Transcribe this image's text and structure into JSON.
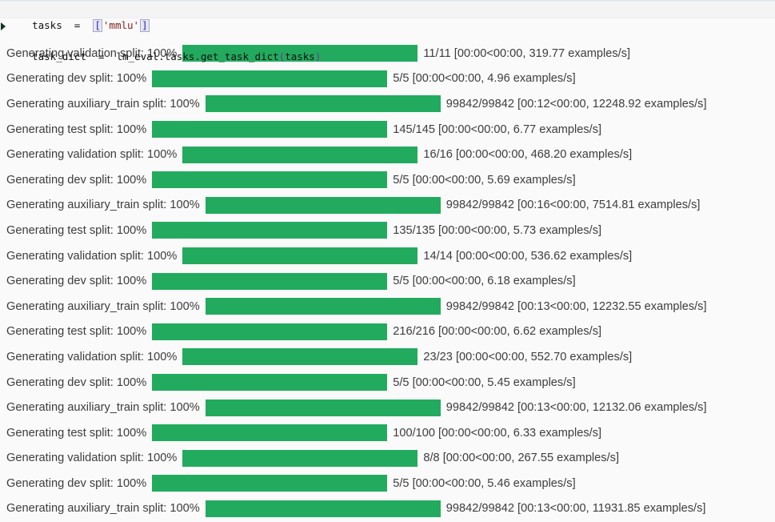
{
  "colors": {
    "bar_green": "#22ab5e",
    "code_string_red": "#8b2020",
    "code_bracket_navy": "#2828b4",
    "code_paren_purple": "#7030a0",
    "label_text": "#3d3d3d"
  },
  "code": {
    "line1": {
      "lhs": "tasks  =  ",
      "bracket_open": "[",
      "string": "'mmlu'",
      "bracket_close": "]"
    },
    "line2": {
      "before_paren": "task_dict  =  lm_eval.tasks.get_task_dict",
      "paren_open": "(",
      "arg": "tasks",
      "paren_close": ")"
    }
  },
  "progress_rows": [
    {
      "label": "Generating validation split: 100%",
      "percent": 100,
      "counter": "11/11 [00:00<00:00, 319.77 examples/s]"
    },
    {
      "label": "Generating dev split: 100%",
      "percent": 100,
      "counter": "5/5 [00:00<00:00, 4.96 examples/s]"
    },
    {
      "label": "Generating auxiliary_train split: 100%",
      "percent": 100,
      "counter": "99842/99842 [00:12<00:00, 12248.92 examples/s]"
    },
    {
      "label": "Generating test split: 100%",
      "percent": 100,
      "counter": "145/145 [00:00<00:00, 6.77 examples/s]"
    },
    {
      "label": "Generating validation split: 100%",
      "percent": 100,
      "counter": "16/16 [00:00<00:00, 468.20 examples/s]"
    },
    {
      "label": "Generating dev split: 100%",
      "percent": 100,
      "counter": "5/5 [00:00<00:00, 5.69 examples/s]"
    },
    {
      "label": "Generating auxiliary_train split: 100%",
      "percent": 100,
      "counter": "99842/99842 [00:16<00:00, 7514.81 examples/s]"
    },
    {
      "label": "Generating test split: 100%",
      "percent": 100,
      "counter": "135/135 [00:00<00:00, 5.73 examples/s]"
    },
    {
      "label": "Generating validation split: 100%",
      "percent": 100,
      "counter": "14/14 [00:00<00:00, 536.62 examples/s]"
    },
    {
      "label": "Generating dev split: 100%",
      "percent": 100,
      "counter": "5/5 [00:00<00:00, 6.18 examples/s]"
    },
    {
      "label": "Generating auxiliary_train split: 100%",
      "percent": 100,
      "counter": "99842/99842 [00:13<00:00, 12232.55 examples/s]"
    },
    {
      "label": "Generating test split: 100%",
      "percent": 100,
      "counter": "216/216 [00:00<00:00, 6.62 examples/s]"
    },
    {
      "label": "Generating validation split: 100%",
      "percent": 100,
      "counter": "23/23 [00:00<00:00, 552.70 examples/s]"
    },
    {
      "label": "Generating dev split: 100%",
      "percent": 100,
      "counter": "5/5 [00:00<00:00, 5.45 examples/s]"
    },
    {
      "label": "Generating auxiliary_train split: 100%",
      "percent": 100,
      "counter": "99842/99842 [00:13<00:00, 12132.06 examples/s]"
    },
    {
      "label": "Generating test split: 100%",
      "percent": 100,
      "counter": "100/100 [00:00<00:00, 6.33 examples/s]"
    },
    {
      "label": "Generating validation split: 100%",
      "percent": 100,
      "counter": "8/8 [00:00<00:00, 267.55 examples/s]"
    },
    {
      "label": "Generating dev split: 100%",
      "percent": 100,
      "counter": "5/5 [00:00<00:00, 5.46 examples/s]"
    },
    {
      "label": "Generating auxiliary_train split: 100%",
      "percent": 100,
      "counter": "99842/99842 [00:13<00:00, 11931.85 examples/s]"
    }
  ]
}
